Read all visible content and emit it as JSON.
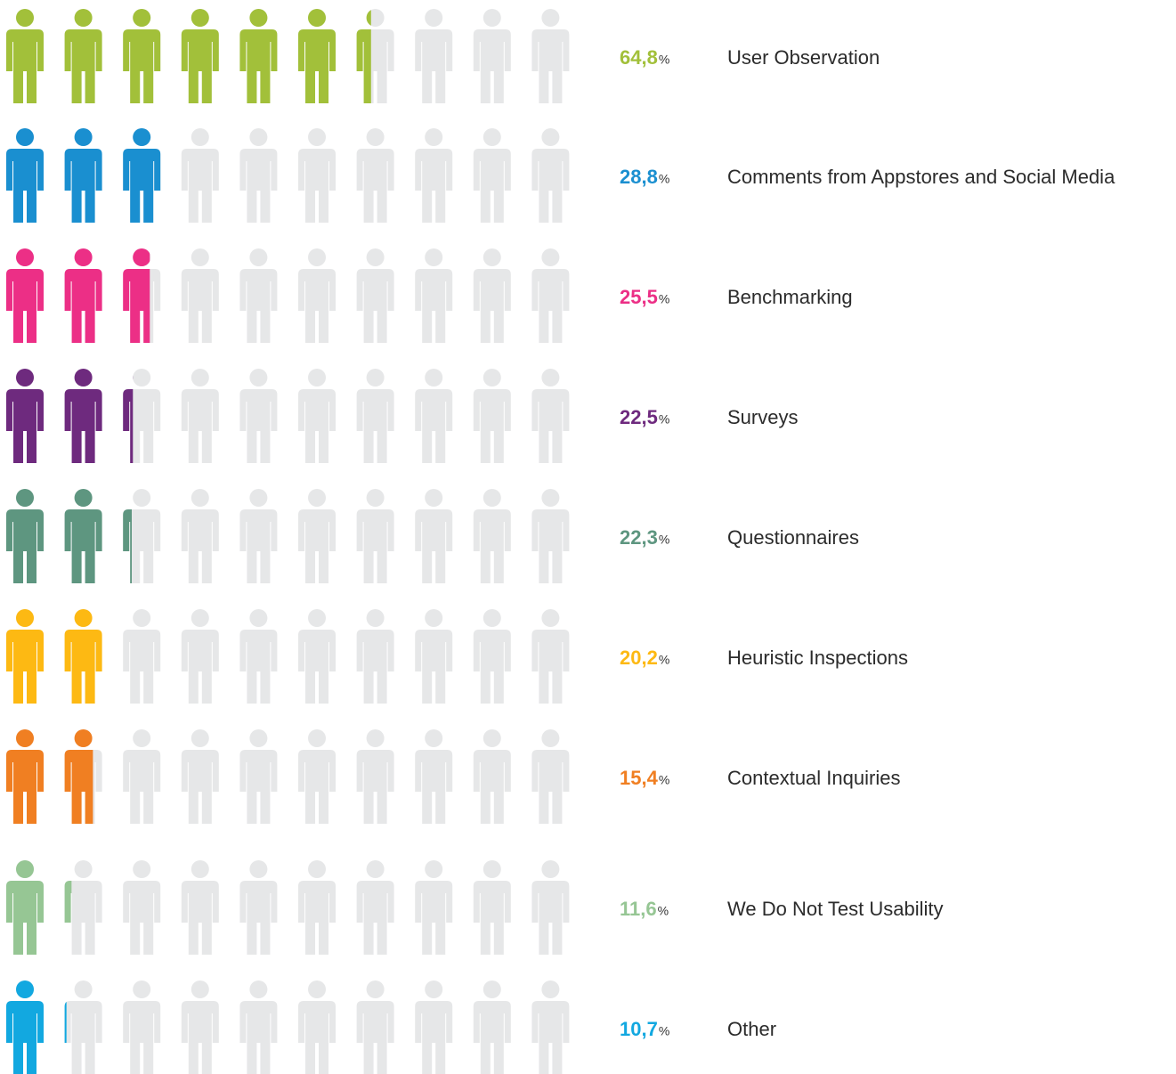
{
  "chart_data": {
    "type": "pictograph",
    "categories": [
      "User Observation",
      "Comments from Appstores and Social Media",
      "Benchmarking",
      "Surveys",
      "Questionnaires",
      "Heuristic Inspections",
      "Contextual Inquiries",
      "We Do Not Test Usability",
      "Other"
    ],
    "values": [
      64.8,
      28.8,
      25.5,
      22.5,
      22.3,
      20.2,
      15.4,
      11.6,
      10.7
    ],
    "value_labels": [
      "64,8",
      "28,8",
      "25,5",
      "22,5",
      "22,3",
      "20,2",
      "15,4",
      "11,6",
      "10,7"
    ],
    "unit": "%",
    "colors": [
      "#a2c03a",
      "#1a8fd0",
      "#ec2f86",
      "#6e2a7e",
      "#5e9680",
      "#fdb913",
      "#f07f22",
      "#96c694",
      "#12a8e0"
    ],
    "empty_color": "#e6e7e8",
    "icon_count": 10,
    "xlim": [
      0,
      100
    ]
  }
}
